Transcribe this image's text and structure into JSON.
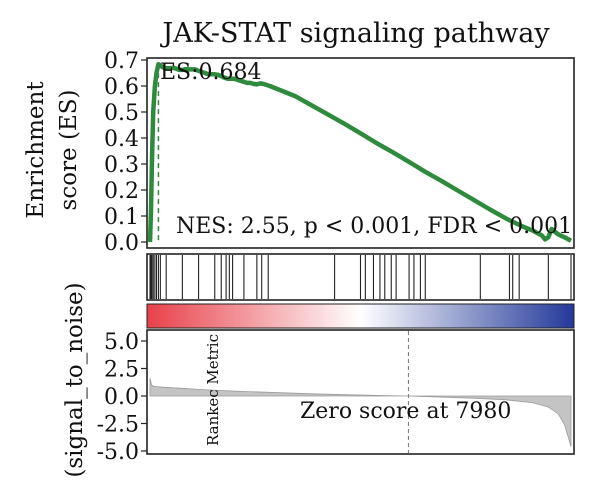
{
  "chart_data": [
    {
      "type": "line",
      "panel": "enrichment-score",
      "title": "JAK-STAT signaling pathway",
      "ylabel": "Enrichment score (ES)",
      "ylim": [
        0,
        0.7
      ],
      "yticks": [
        "0.7",
        "0.6",
        "0.5",
        "0.4",
        "0.3",
        "0.2",
        "0.1",
        "0.0"
      ],
      "line_color": "#2e8b3e",
      "es_peak_label": "ES:0.684",
      "es_peak": {
        "x": 260,
        "y": 0.684
      },
      "stats_label": "NES: 2.55, p < 0.001, FDR < 0.001",
      "x_max": 13000,
      "series": [
        {
          "x": [
            0,
            30,
            60,
            100,
            150,
            200,
            260,
            320,
            400,
            500,
            600,
            700,
            800,
            900,
            1000,
            1100,
            1200,
            1300,
            1400,
            1500,
            1600,
            1700,
            1800,
            1900,
            2000,
            2100,
            2200,
            2300,
            2400,
            2500,
            2600,
            2700,
            2800,
            2900,
            3000,
            3100,
            3200,
            3300,
            3400,
            3500,
            3700,
            4000,
            4500,
            5000,
            5500,
            6000,
            6500,
            7000,
            7500,
            8000,
            8500,
            9000,
            9500,
            10000,
            10500,
            11000,
            11500,
            11800,
            12100,
            12200,
            12300,
            12400,
            12500,
            12600,
            12800,
            13000
          ],
          "values": [
            0.0,
            0.12,
            0.3,
            0.5,
            0.6,
            0.65,
            0.684,
            0.678,
            0.672,
            0.668,
            0.668,
            0.67,
            0.667,
            0.662,
            0.662,
            0.665,
            0.664,
            0.664,
            0.664,
            0.658,
            0.654,
            0.65,
            0.645,
            0.645,
            0.645,
            0.643,
            0.638,
            0.632,
            0.628,
            0.628,
            0.628,
            0.624,
            0.62,
            0.616,
            0.612,
            0.612,
            0.608,
            0.606,
            0.61,
            0.608,
            0.6,
            0.585,
            0.56,
            0.525,
            0.49,
            0.455,
            0.418,
            0.38,
            0.345,
            0.308,
            0.27,
            0.235,
            0.198,
            0.162,
            0.125,
            0.09,
            0.06,
            0.045,
            0.025,
            0.01,
            0.018,
            0.05,
            0.04,
            0.03,
            0.018,
            0.005
          ]
        }
      ]
    },
    {
      "type": "barcode",
      "panel": "hits",
      "x_max": 13000,
      "hits": [
        0,
        30,
        60,
        100,
        150,
        200,
        260,
        320,
        500,
        1000,
        1500,
        2000,
        2200,
        2350,
        2450,
        2550,
        2900,
        3300,
        3450,
        3650,
        5700,
        6500,
        6650,
        6900,
        7100,
        7250,
        7450,
        7600,
        8000,
        8150,
        8350,
        8500,
        10200,
        11100,
        11200,
        11400,
        12300,
        13000
      ]
    },
    {
      "type": "area",
      "panel": "ranked-list-metric",
      "ylabel": "(signal_to_noise)",
      "ylim": [
        -5.0,
        7.5
      ],
      "yticks": [
        "5.0",
        "2.5",
        "0.0",
        "-2.5",
        "-5.0"
      ],
      "metric_label": "Rankec Metric",
      "zero_cross_label": "Zero score at 7980",
      "zero_cross": 7980,
      "x_max": 13000,
      "fill_color": "#c4c4c4",
      "gradient": {
        "left": "#e8414a",
        "mid": "#ffffff",
        "right": "#23399a"
      },
      "series": [
        {
          "x": [
            0,
            50,
            100,
            200,
            400,
            700,
            1000,
            1500,
            2000,
            3000,
            4000,
            5000,
            6000,
            7000,
            7980,
            9000,
            10000,
            11000,
            11800,
            12300,
            12600,
            12800,
            12900,
            13000
          ],
          "values": [
            1.6,
            1.0,
            0.9,
            0.85,
            0.8,
            0.75,
            0.7,
            0.6,
            0.52,
            0.4,
            0.3,
            0.2,
            0.12,
            0.05,
            0.0,
            -0.1,
            -0.2,
            -0.35,
            -0.6,
            -1.0,
            -1.6,
            -2.6,
            -3.6,
            -4.6
          ]
        }
      ]
    }
  ]
}
